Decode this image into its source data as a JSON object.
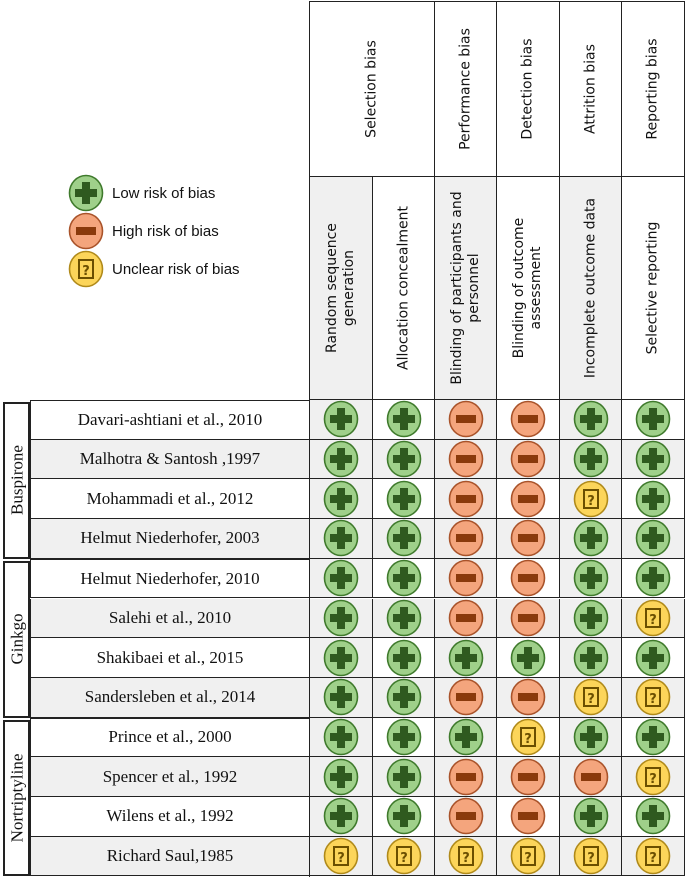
{
  "legend": [
    {
      "type": "low",
      "label": "Low risk of bias"
    },
    {
      "type": "high",
      "label": "High risk of bias"
    },
    {
      "type": "unclear",
      "label": "Unclear risk of bias"
    }
  ],
  "domains": [
    {
      "label": "Selection bias",
      "span": 2
    },
    {
      "label": "Performance bias",
      "span": 1
    },
    {
      "label": "Detection bias",
      "span": 1
    },
    {
      "label": "Attrition bias",
      "span": 1
    },
    {
      "label": "Reporting bias",
      "span": 1
    }
  ],
  "criteria": [
    "Random sequence generation",
    "Allocation concealment",
    "Blinding of participants and personnel",
    "Blinding of outcome assessment",
    "Incomplete outcome data",
    "Selective reporting"
  ],
  "groups": [
    {
      "label": "Buspirone",
      "count": 4
    },
    {
      "label": "Ginkgo",
      "count": 4
    },
    {
      "label": "Nortriptyline",
      "count": 4
    }
  ],
  "studies": [
    {
      "name": "Davari-ashtiani et al., 2010",
      "ratings": [
        "low",
        "low",
        "high",
        "high",
        "low",
        "low"
      ]
    },
    {
      "name": "Malhotra & Santosh ,1997",
      "ratings": [
        "low",
        "low",
        "high",
        "high",
        "low",
        "low"
      ]
    },
    {
      "name": "Mohammadi et al., 2012",
      "ratings": [
        "low",
        "low",
        "high",
        "high",
        "unclear",
        "low"
      ]
    },
    {
      "name": "Helmut Niederhofer, 2003",
      "ratings": [
        "low",
        "low",
        "high",
        "high",
        "low",
        "low"
      ]
    },
    {
      "name": "Helmut Niederhofer, 2010",
      "ratings": [
        "low",
        "low",
        "high",
        "high",
        "low",
        "low"
      ]
    },
    {
      "name": "Salehi et al., 2010",
      "ratings": [
        "low",
        "low",
        "high",
        "high",
        "low",
        "unclear"
      ]
    },
    {
      "name": "Shakibaei et al., 2015",
      "ratings": [
        "low",
        "low",
        "low",
        "low",
        "low",
        "low"
      ]
    },
    {
      "name": "Sandersleben et al., 2014",
      "ratings": [
        "low",
        "low",
        "high",
        "high",
        "unclear",
        "unclear"
      ]
    },
    {
      "name": "Prince et al., 2000",
      "ratings": [
        "low",
        "low",
        "low",
        "unclear",
        "low",
        "low"
      ]
    },
    {
      "name": "Spencer et al., 1992",
      "ratings": [
        "low",
        "low",
        "high",
        "high",
        "high",
        "unclear"
      ]
    },
    {
      "name": "Wilens et al., 1992",
      "ratings": [
        "low",
        "low",
        "high",
        "high",
        "low",
        "low"
      ]
    },
    {
      "name": "Richard Saul,1985",
      "ratings": [
        "unclear",
        "unclear",
        "unclear",
        "unclear",
        "unclear",
        "unclear"
      ]
    }
  ],
  "colors": {
    "low_fill": "#9fd08a",
    "low_stroke": "#3f7a2c",
    "low_glyph": "#2f5a1f",
    "high_fill": "#f4a57d",
    "high_stroke": "#a9532a",
    "high_glyph": "#8a3a0c",
    "unclear_fill": "#fcd55a",
    "unclear_stroke": "#b08a1a",
    "unclear_glyph": "#6b4f00"
  }
}
